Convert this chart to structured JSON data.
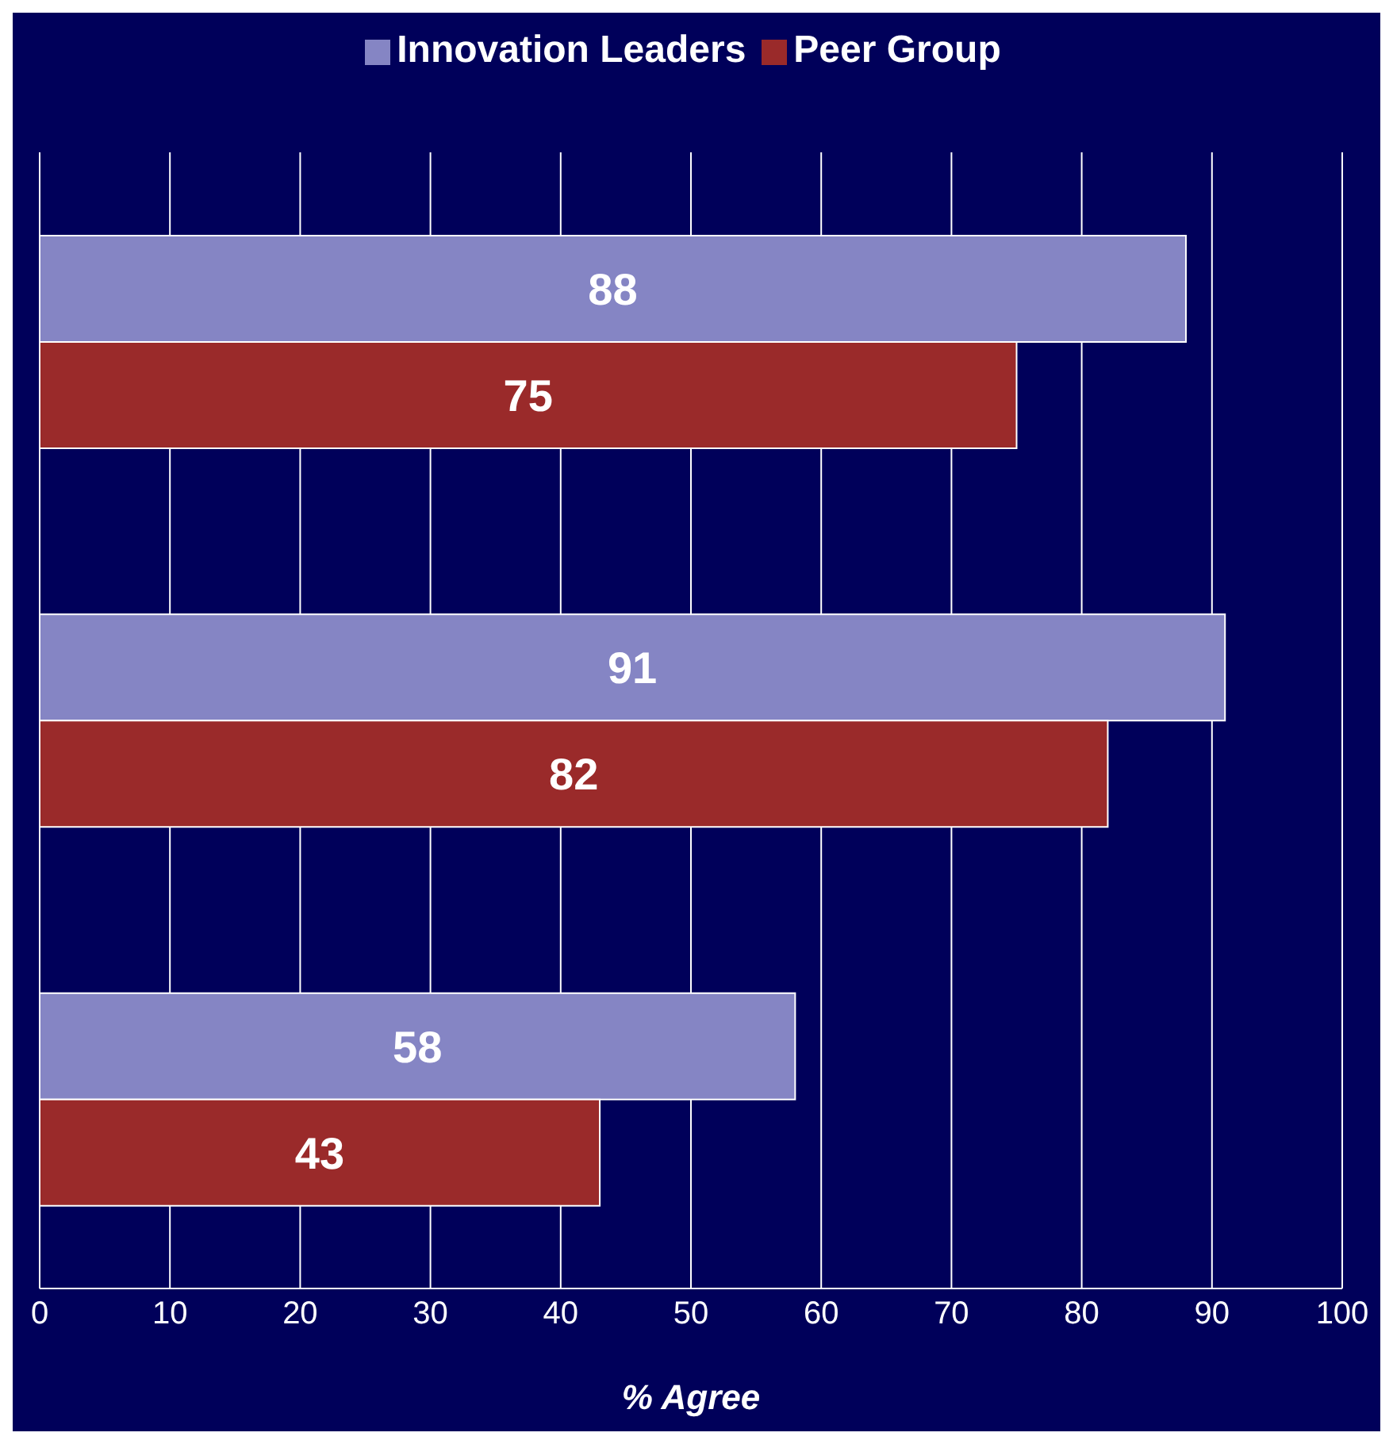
{
  "chart_data": {
    "type": "bar",
    "orientation": "horizontal",
    "xlabel": "% Agree",
    "categories": [
      null,
      null,
      null
    ],
    "series": [
      {
        "name": "Innovation Leaders",
        "color": "#8585c4",
        "values": [
          88,
          91,
          58
        ]
      },
      {
        "name": "Peer Group",
        "color": "#9a2a2a",
        "values": [
          75,
          82,
          43
        ]
      }
    ],
    "xlim": [
      0,
      100
    ],
    "xticks": [
      0,
      10,
      20,
      30,
      40,
      50,
      60,
      70,
      80,
      90,
      100
    ],
    "grid": "x",
    "legend": "top",
    "data_labels": true
  }
}
